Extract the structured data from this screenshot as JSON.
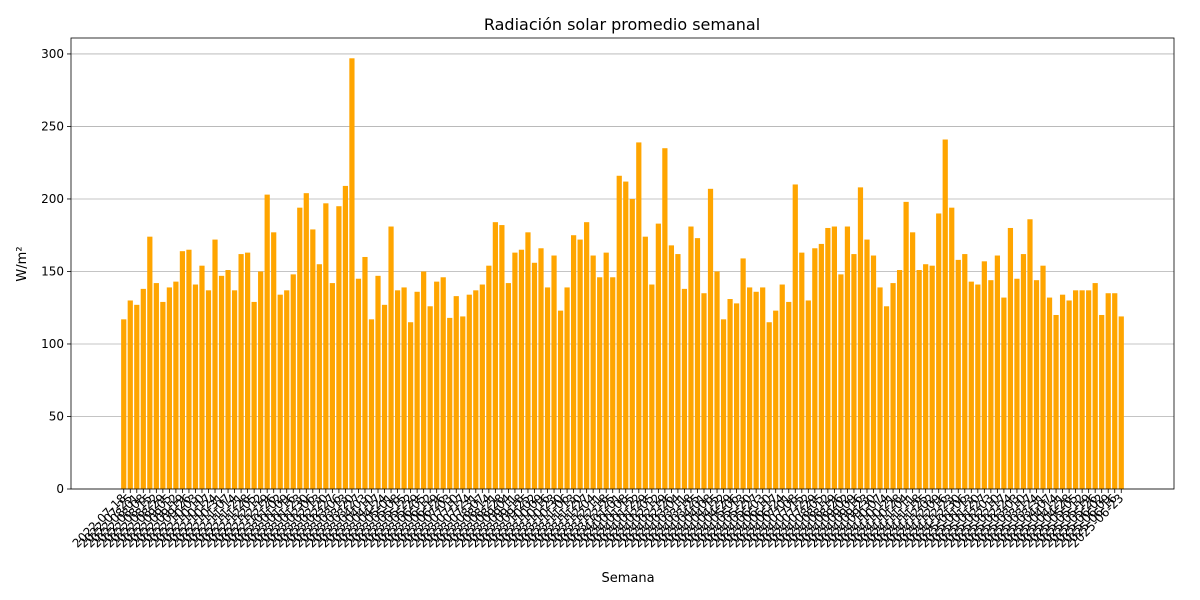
{
  "chart_data": {
    "type": "bar",
    "title": "Radiación solar promedio semanal",
    "xlabel": "Semana",
    "ylabel": "W/m²",
    "color": "#ffa500",
    "grid": true,
    "categories": [
      "2022-07-18",
      "2022-07-25",
      "2022-08-01",
      "2022-08-08",
      "2022-08-15",
      "2022-08-22",
      "2022-08-29",
      "2022-09-05",
      "2022-09-12",
      "2022-09-19",
      "2022-09-26",
      "2022-10-03",
      "2022-10-10",
      "2022-10-17",
      "2022-10-24",
      "2022-10-31",
      "2022-11-07",
      "2022-11-14",
      "2022-11-21",
      "2022-11-28",
      "2022-12-05",
      "2022-12-12",
      "2022-12-19",
      "2022-12-26",
      "2023-01-02",
      "2023-01-09",
      "2023-01-16",
      "2023-01-23",
      "2023-01-30",
      "2023-02-06",
      "2023-02-13",
      "2023-02-20",
      "2023-02-27",
      "2023-03-06",
      "2023-03-13",
      "2023-03-20",
      "2023-03-27",
      "2023-04-03",
      "2023-04-10",
      "2023-04-17",
      "2023-04-24",
      "2023-05-01",
      "2023-05-08",
      "2023-05-15",
      "2023-05-22",
      "2023-05-29",
      "2023-06-05",
      "2023-06-12",
      "2023-06-19",
      "2023-06-26",
      "2023-07-03",
      "2023-07-10",
      "2023-07-17",
      "2023-07-24",
      "2023-07-31",
      "2023-08-07",
      "2023-08-14",
      "2023-08-21",
      "2023-08-28",
      "2023-09-04",
      "2023-09-11",
      "2023-09-18",
      "2023-09-25",
      "2023-10-02",
      "2023-10-09",
      "2023-10-16",
      "2023-10-23",
      "2023-10-30",
      "2023-11-06",
      "2023-11-13",
      "2023-11-20",
      "2023-11-27",
      "2023-12-04",
      "2023-12-11",
      "2023-12-18",
      "2023-12-25",
      "2024-01-01",
      "2024-01-08",
      "2024-01-15",
      "2024-01-22",
      "2024-01-29",
      "2024-02-05",
      "2024-02-12",
      "2024-02-19",
      "2024-02-26",
      "2024-03-04",
      "2024-03-11",
      "2024-03-18",
      "2024-03-25",
      "2024-04-01",
      "2024-04-08",
      "2024-04-15",
      "2024-04-22",
      "2024-04-29",
      "2024-05-06",
      "2024-05-13",
      "2024-05-20",
      "2024-05-27",
      "2024-06-03",
      "2024-06-10",
      "2024-06-17",
      "2024-06-24",
      "2024-07-01",
      "2024-07-08",
      "2024-07-15",
      "2024-07-22",
      "2024-07-29",
      "2024-08-05",
      "2024-08-12",
      "2024-08-19",
      "2024-08-26",
      "2024-09-02",
      "2024-09-09",
      "2024-09-16",
      "2024-09-23",
      "2024-09-30",
      "2024-10-07",
      "2024-10-14",
      "2024-10-21",
      "2024-10-28",
      "2024-11-04",
      "2024-11-11",
      "2024-11-18",
      "2024-11-25",
      "2024-12-02",
      "2024-12-09",
      "2024-12-16",
      "2024-12-23",
      "2024-12-30",
      "2025-01-06",
      "2025-01-13",
      "2025-01-20",
      "2025-01-27",
      "2025-02-03",
      "2025-02-10",
      "2025-02-17",
      "2025-02-24",
      "2025-03-03",
      "2025-03-10",
      "2025-03-17",
      "2025-03-24",
      "2025-03-31",
      "2025-04-07",
      "2025-04-14",
      "2025-04-21",
      "2025-04-28",
      "2025-05-05",
      "2025-05-12",
      "2025-05-19",
      "2025-05-26",
      "2025-06-02",
      "2025-06-09",
      "2025-06-16",
      "2025-06-23"
    ],
    "values": [
      117,
      130,
      127,
      138,
      174,
      142,
      129,
      139,
      143,
      164,
      165,
      141,
      154,
      137,
      172,
      147,
      151,
      137,
      162,
      163,
      129,
      150,
      203,
      177,
      134,
      137,
      148,
      194,
      204,
      179,
      155,
      197,
      142,
      195,
      209,
      297,
      145,
      160,
      117,
      147,
      127,
      181,
      137,
      139,
      115,
      136,
      150,
      126,
      143,
      146,
      118,
      133,
      119,
      134,
      137,
      141,
      154,
      184,
      182,
      142,
      163,
      165,
      177,
      156,
      166,
      139,
      161,
      123,
      139,
      175,
      172,
      184,
      161,
      146,
      163,
      146,
      216,
      212,
      200,
      239,
      174,
      141,
      183,
      235,
      168,
      162,
      138,
      181,
      173,
      135,
      207,
      150,
      117,
      131,
      128,
      159,
      139,
      136,
      139,
      115,
      123,
      141,
      129,
      210,
      163,
      130,
      166,
      169,
      180,
      181,
      148,
      181,
      162,
      208,
      172,
      161,
      139,
      126,
      142,
      151,
      198,
      177,
      151,
      155,
      154,
      190,
      241,
      194,
      158,
      162,
      143,
      141,
      157,
      144,
      161,
      132,
      180,
      145,
      162,
      186,
      144,
      154,
      132,
      120,
      134,
      130,
      137,
      137,
      137,
      142,
      120,
      135,
      135,
      119
    ],
    "ylim": [
      0,
      311
    ],
    "yticks": [
      0,
      50,
      100,
      150,
      200,
      250,
      300
    ]
  }
}
